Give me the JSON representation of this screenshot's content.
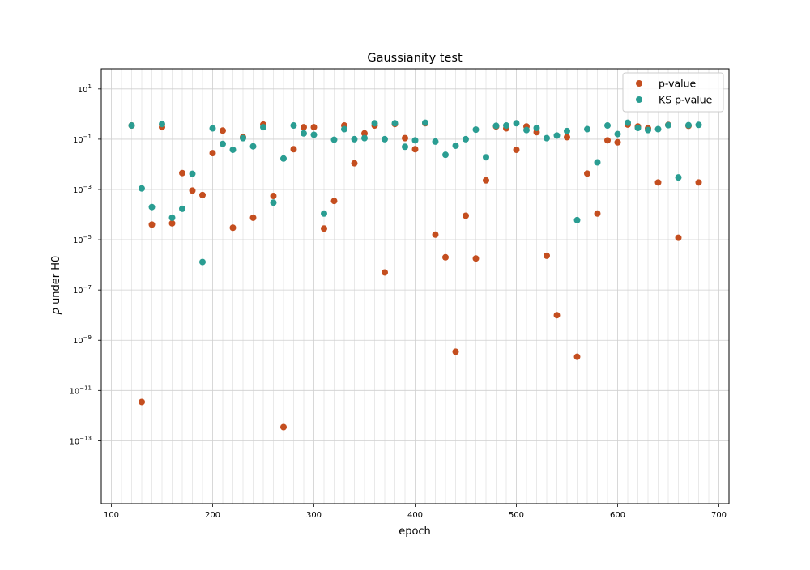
{
  "chart_data": {
    "type": "scatter",
    "title": "Gaussianity test",
    "xlabel": "epoch",
    "ylabel_italic": "p",
    "ylabel_rest": " under H0",
    "xlim": [
      90,
      710
    ],
    "ylim_log10": [
      -15.5,
      1.8
    ],
    "yscale": "log",
    "grid": true,
    "legend_position": "top-right",
    "x_ticks": [
      100,
      200,
      300,
      400,
      500,
      600,
      700
    ],
    "x_tick_labels": [
      "100",
      "200",
      "300",
      "400",
      "500",
      "600",
      "700"
    ],
    "y_ticks_exp": [
      1,
      -1,
      -3,
      -5,
      -7,
      -9,
      -11,
      -13
    ],
    "y_tick_base": "10",
    "y_tick_exponents": [
      "1",
      "−1",
      "−3",
      "−5",
      "−7",
      "−9",
      "−11",
      "−13"
    ],
    "series": [
      {
        "name": "p-value",
        "color": "#c44e1f",
        "points": [
          [
            120,
            0.35
          ],
          [
            130,
            3.5e-12
          ],
          [
            140,
            4e-05
          ],
          [
            150,
            0.3
          ],
          [
            160,
            4.5e-05
          ],
          [
            170,
            0.0045
          ],
          [
            180,
            0.0009
          ],
          [
            190,
            0.0006
          ],
          [
            200,
            0.028
          ],
          [
            210,
            0.22
          ],
          [
            220,
            3e-05
          ],
          [
            230,
            0.12
          ],
          [
            240,
            7.5e-05
          ],
          [
            250,
            0.38
          ],
          [
            260,
            0.00055
          ],
          [
            270,
            3.5e-13
          ],
          [
            280,
            0.04
          ],
          [
            290,
            0.3
          ],
          [
            300,
            0.3
          ],
          [
            310,
            2.8e-05
          ],
          [
            320,
            0.00035
          ],
          [
            330,
            0.35
          ],
          [
            340,
            0.011
          ],
          [
            350,
            0.17
          ],
          [
            360,
            0.35
          ],
          [
            370,
            5e-07
          ],
          [
            380,
            0.4
          ],
          [
            390,
            0.11
          ],
          [
            400,
            0.04
          ],
          [
            410,
            0.43
          ],
          [
            420,
            1.6e-05
          ],
          [
            430,
            2e-06
          ],
          [
            440,
            3.5e-10
          ],
          [
            450,
            9e-05
          ],
          [
            460,
            1.8e-06
          ],
          [
            470,
            0.0023
          ],
          [
            480,
            0.32
          ],
          [
            490,
            0.27
          ],
          [
            500,
            0.038
          ],
          [
            510,
            0.32
          ],
          [
            520,
            0.19
          ],
          [
            530,
            2.3e-06
          ],
          [
            540,
            1e-08
          ],
          [
            550,
            0.12
          ],
          [
            560,
            2.2e-10
          ],
          [
            570,
            0.0043
          ],
          [
            580,
            0.00011
          ],
          [
            590,
            0.09
          ],
          [
            600,
            0.075
          ],
          [
            610,
            0.38
          ],
          [
            620,
            0.32
          ],
          [
            630,
            0.27
          ],
          [
            640,
            0.0019
          ],
          [
            650,
            0.37
          ],
          [
            660,
            1.2e-05
          ],
          [
            670,
            0.34
          ],
          [
            680,
            0.0019
          ]
        ]
      },
      {
        "name": "KS p-value",
        "color": "#2a9d92",
        "points": [
          [
            120,
            0.35
          ],
          [
            130,
            0.0011
          ],
          [
            140,
            0.0002
          ],
          [
            150,
            0.4
          ],
          [
            160,
            7.5e-05
          ],
          [
            170,
            0.00017
          ],
          [
            180,
            0.0042
          ],
          [
            190,
            1.3e-06
          ],
          [
            200,
            0.27
          ],
          [
            210,
            0.065
          ],
          [
            220,
            0.038
          ],
          [
            230,
            0.11
          ],
          [
            240,
            0.052
          ],
          [
            250,
            0.3
          ],
          [
            260,
            0.0003
          ],
          [
            270,
            0.017
          ],
          [
            280,
            0.35
          ],
          [
            290,
            0.17
          ],
          [
            300,
            0.15
          ],
          [
            310,
            0.00011
          ],
          [
            320,
            0.095
          ],
          [
            330,
            0.25
          ],
          [
            340,
            0.1
          ],
          [
            350,
            0.11
          ],
          [
            360,
            0.43
          ],
          [
            370,
            0.1
          ],
          [
            380,
            0.43
          ],
          [
            390,
            0.05
          ],
          [
            400,
            0.09
          ],
          [
            410,
            0.45
          ],
          [
            420,
            0.08
          ],
          [
            430,
            0.024
          ],
          [
            440,
            0.055
          ],
          [
            450,
            0.1
          ],
          [
            460,
            0.24
          ],
          [
            470,
            0.019
          ],
          [
            480,
            0.34
          ],
          [
            490,
            0.35
          ],
          [
            500,
            0.43
          ],
          [
            510,
            0.23
          ],
          [
            520,
            0.28
          ],
          [
            530,
            0.11
          ],
          [
            540,
            0.14
          ],
          [
            550,
            0.21
          ],
          [
            560,
            6e-05
          ],
          [
            570,
            0.25
          ],
          [
            580,
            0.012
          ],
          [
            590,
            0.35
          ],
          [
            600,
            0.16
          ],
          [
            610,
            0.45
          ],
          [
            620,
            0.28
          ],
          [
            630,
            0.23
          ],
          [
            640,
            0.25
          ],
          [
            650,
            0.36
          ],
          [
            660,
            0.003
          ],
          [
            670,
            0.36
          ],
          [
            680,
            0.37
          ]
        ]
      }
    ]
  }
}
